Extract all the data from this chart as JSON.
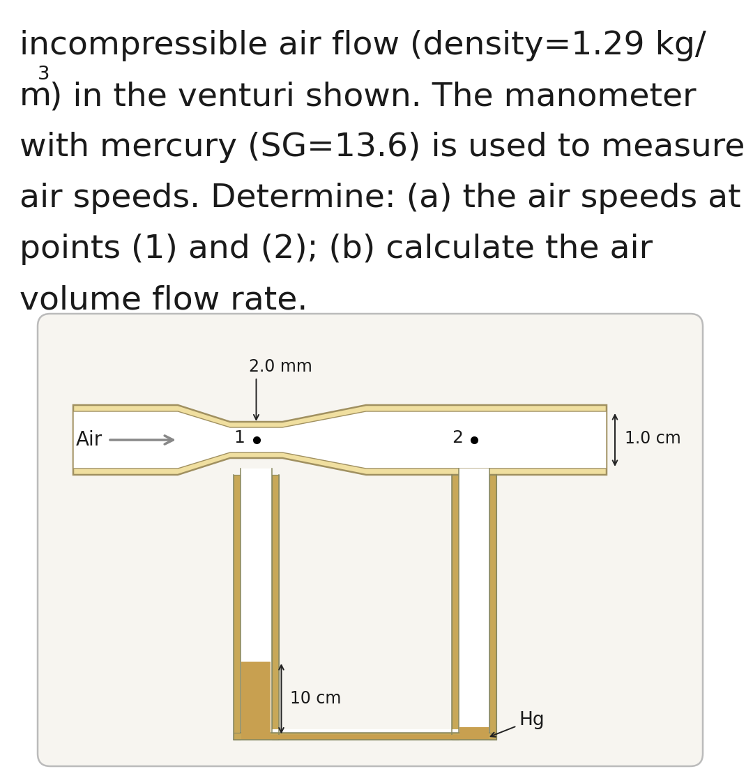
{
  "text_line0": "incompressible air flow (density=1.29 kg/",
  "text_line1_a": "m",
  "text_line1_sup": "3",
  "text_line1_b": ") in the venturi shown. The manometer",
  "text_line2": "with mercury (SG=13.6) is used to measure",
  "text_line3": "air speeds. Determine: (a) the air speeds at",
  "text_line4": "points (1) and (2); (b) calculate the air",
  "text_line5": "volume flow rate.",
  "label_2mm": "2.0 mm",
  "label_air": "Air",
  "label_1cm": "1.0 cm",
  "label_10cm": "10 cm",
  "label_hg": "Hg",
  "label_pt1": "1",
  "label_pt2": "2",
  "bg_color": "#ffffff",
  "diag_bg": "#f7f5f0",
  "diag_border": "#bbbbbb",
  "venturi_fill": "#f0dfa0",
  "venturi_edge": "#a09060",
  "pipe_white": "#ffffff",
  "pipe_inner_edge": "#a09060",
  "tube_fill": "#c8a858",
  "tube_edge": "#888860",
  "mercury_color": "#c8a050",
  "text_color": "#1a1a1a",
  "arrow_color": "#888888",
  "font_size_text": 34,
  "font_size_label": 18,
  "font_size_dim": 17
}
